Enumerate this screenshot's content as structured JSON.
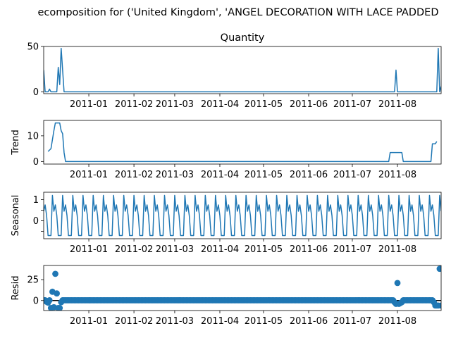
{
  "figure": {
    "suptitle": "ecomposition for ('United Kingdom', 'ANGEL DECORATION WITH LACE PADDED",
    "line_color": "#1f77b4"
  },
  "chart_data": [
    {
      "type": "line",
      "title": "Quantity",
      "ylabel": "",
      "ylim": [
        -2,
        50
      ],
      "yticks": [
        0,
        50
      ],
      "x_start": "2010-12-01",
      "x_end": "2011-08-31",
      "xticks": [
        "2011-01",
        "2011-02",
        "2011-03",
        "2011-04",
        "2011-05",
        "2011-06",
        "2011-07",
        "2011-08"
      ],
      "points": [
        [
          "2010-12-01",
          24
        ],
        [
          "2010-12-02",
          0
        ],
        [
          "2010-12-03",
          0
        ],
        [
          "2010-12-04",
          0
        ],
        [
          "2010-12-05",
          3
        ],
        [
          "2010-12-06",
          0
        ],
        [
          "2010-12-07",
          0
        ],
        [
          "2010-12-08",
          0
        ],
        [
          "2010-12-09",
          0
        ],
        [
          "2010-12-10",
          0
        ],
        [
          "2010-12-11",
          27
        ],
        [
          "2010-12-12",
          8
        ],
        [
          "2010-12-13",
          48
        ],
        [
          "2010-12-14",
          24
        ],
        [
          "2010-12-15",
          0
        ],
        [
          "2011-07-30",
          0
        ],
        [
          "2011-07-31",
          24
        ],
        [
          "2011-08-01",
          0
        ],
        [
          "2011-08-28",
          0
        ],
        [
          "2011-08-29",
          48
        ],
        [
          "2011-08-30",
          0
        ],
        [
          "2011-08-31",
          6
        ]
      ]
    },
    {
      "type": "line",
      "title": "",
      "ylabel": "Trend",
      "ylim": [
        -1,
        16
      ],
      "yticks": [
        0,
        10
      ],
      "x_start": "2010-12-01",
      "x_end": "2011-08-31",
      "xticks": [
        "2011-01",
        "2011-02",
        "2011-03",
        "2011-04",
        "2011-05",
        "2011-06",
        "2011-07",
        "2011-08"
      ],
      "points": [
        [
          "2010-12-04",
          3.9
        ],
        [
          "2010-12-06",
          5
        ],
        [
          "2010-12-08",
          12
        ],
        [
          "2010-12-09",
          15
        ],
        [
          "2010-12-12",
          15
        ],
        [
          "2010-12-13",
          12
        ],
        [
          "2010-12-14",
          10.8
        ],
        [
          "2010-12-15",
          3.5
        ],
        [
          "2010-12-16",
          0
        ],
        [
          "2010-12-17",
          0
        ],
        [
          "2011-07-26",
          0
        ],
        [
          "2011-07-27",
          3.5
        ],
        [
          "2011-08-04",
          3.5
        ],
        [
          "2011-08-05",
          0
        ],
        [
          "2011-08-24",
          0
        ],
        [
          "2011-08-25",
          6.9
        ],
        [
          "2011-08-27",
          6.9
        ],
        [
          "2011-08-28",
          7.8
        ]
      ]
    },
    {
      "type": "line",
      "title": "",
      "ylabel": "Seasonal",
      "ylim": [
        -0.85,
        1.35
      ],
      "yticks": [
        -0.5,
        0,
        0.5,
        1
      ],
      "ytick_labels": [
        "",
        "0",
        "",
        "1"
      ],
      "x_start": "2010-12-01",
      "x_end": "2011-08-31",
      "xticks": [
        "2011-01",
        "2011-02",
        "2011-03",
        "2011-04",
        "2011-05",
        "2011-06",
        "2011-07",
        "2011-08"
      ],
      "weekly_pattern": [
        0.45,
        0.75,
        0.25,
        -0.7,
        -0.7,
        -0.7,
        1.2
      ],
      "pattern_start": "2010-12-01"
    },
    {
      "type": "scatter",
      "title": "",
      "ylabel": "Resid",
      "ylim": [
        -12,
        42
      ],
      "yticks": [
        0,
        25
      ],
      "hline": 0,
      "x_start": "2010-12-01",
      "x_end": "2011-08-31",
      "xticks": [
        "2011-01",
        "2011-02",
        "2011-03",
        "2011-04",
        "2011-05",
        "2011-06",
        "2011-07",
        "2011-08"
      ],
      "default_value": 0.3,
      "outliers": [
        [
          "2010-12-03",
          -1.5
        ],
        [
          "2010-12-04",
          -2.5
        ],
        [
          "2010-12-06",
          -9
        ],
        [
          "2010-12-07",
          10.5
        ],
        [
          "2010-12-08",
          -8
        ],
        [
          "2010-12-09",
          32
        ],
        [
          "2010-12-10",
          8.5
        ],
        [
          "2010-12-11",
          -9
        ],
        [
          "2010-12-12",
          -9
        ],
        [
          "2010-12-13",
          -2
        ],
        [
          "2011-07-30",
          -2
        ],
        [
          "2011-07-31",
          -4
        ],
        [
          "2011-08-01",
          21
        ],
        [
          "2011-08-02",
          -4
        ],
        [
          "2011-08-03",
          -3
        ],
        [
          "2011-08-04",
          -2
        ],
        [
          "2011-08-26",
          -2
        ],
        [
          "2011-08-27",
          -6
        ],
        [
          "2011-08-28",
          -6
        ],
        [
          "2011-08-29",
          -6
        ],
        [
          "2011-08-30",
          38
        ],
        [
          "2011-08-31",
          -6
        ]
      ]
    }
  ]
}
